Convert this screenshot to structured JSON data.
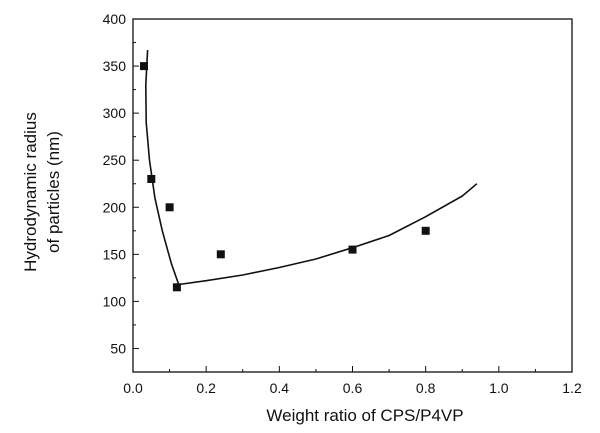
{
  "chart_data": {
    "type": "scatter",
    "title": "",
    "xlabel": "Weight ratio of CPS/P4VP",
    "ylabel_lines": [
      "Hydrodynamic radius",
      "of particles (nm)"
    ],
    "xlim": [
      0.0,
      1.2
    ],
    "ylim": [
      25,
      400
    ],
    "xticks": [
      0.0,
      0.2,
      0.4,
      0.6,
      0.8,
      1.0,
      1.2
    ],
    "xtick_labels": [
      "0.0",
      "0.2",
      "0.4",
      "0.6",
      "0.8",
      "1.0",
      "1.2"
    ],
    "yticks": [
      50,
      100,
      150,
      200,
      250,
      300,
      350,
      400
    ],
    "ytick_labels": [
      "50",
      "100",
      "150",
      "200",
      "250",
      "300",
      "350",
      "400"
    ],
    "grid": false,
    "legend": "none",
    "series": [
      {
        "kind": "points",
        "marker": "square",
        "color": "#111111",
        "x": [
          0.03,
          0.05,
          0.1,
          0.12,
          0.24,
          0.6,
          0.8
        ],
        "y": [
          350,
          230,
          200,
          115,
          150,
          155,
          175
        ]
      },
      {
        "kind": "fit-line",
        "color": "#111111",
        "x": [
          0.04,
          0.035,
          0.036,
          0.045,
          0.06,
          0.08,
          0.105,
          0.125,
          0.2,
          0.3,
          0.4,
          0.5,
          0.6,
          0.7,
          0.8,
          0.9,
          0.94
        ],
        "y": [
          367,
          330,
          290,
          250,
          210,
          175,
          140,
          118,
          122,
          128,
          136,
          145,
          157,
          170,
          190,
          212,
          225
        ]
      }
    ]
  }
}
